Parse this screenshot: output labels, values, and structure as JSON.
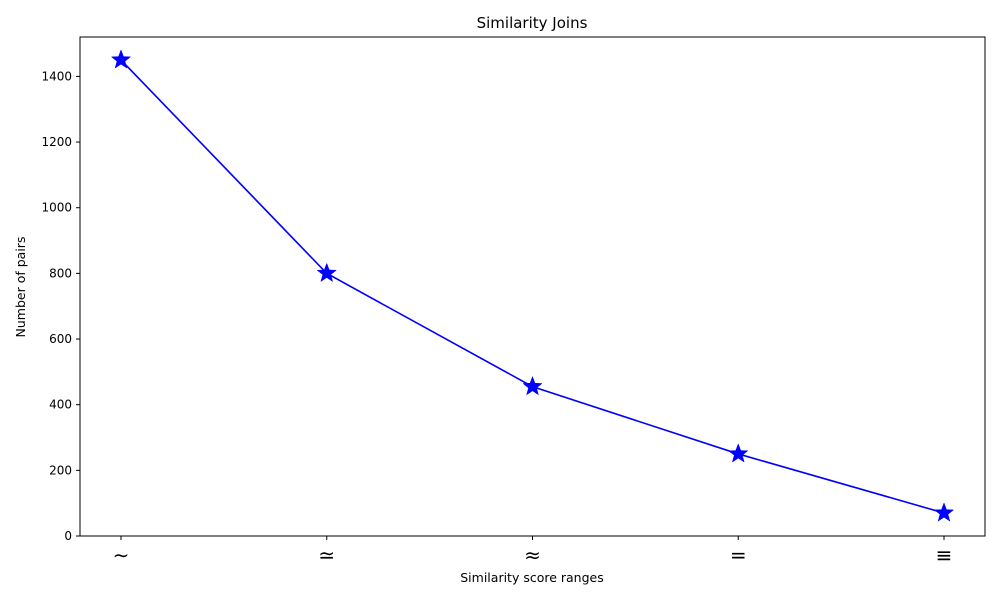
{
  "chart_data": {
    "type": "line",
    "title": "Similarity Joins",
    "xlabel": "Similarity score ranges",
    "ylabel": "Number of pairs",
    "categories": [
      "∼",
      "≃",
      "≈",
      "=",
      "≡"
    ],
    "series": [
      {
        "values": [
          1450,
          800,
          455,
          250,
          70
        ],
        "color": "#0000ff",
        "marker": "star"
      }
    ],
    "ylim": [
      0,
      1520
    ],
    "yticks": [
      0,
      200,
      400,
      600,
      800,
      1000,
      1200,
      1400
    ],
    "grid": false
  }
}
